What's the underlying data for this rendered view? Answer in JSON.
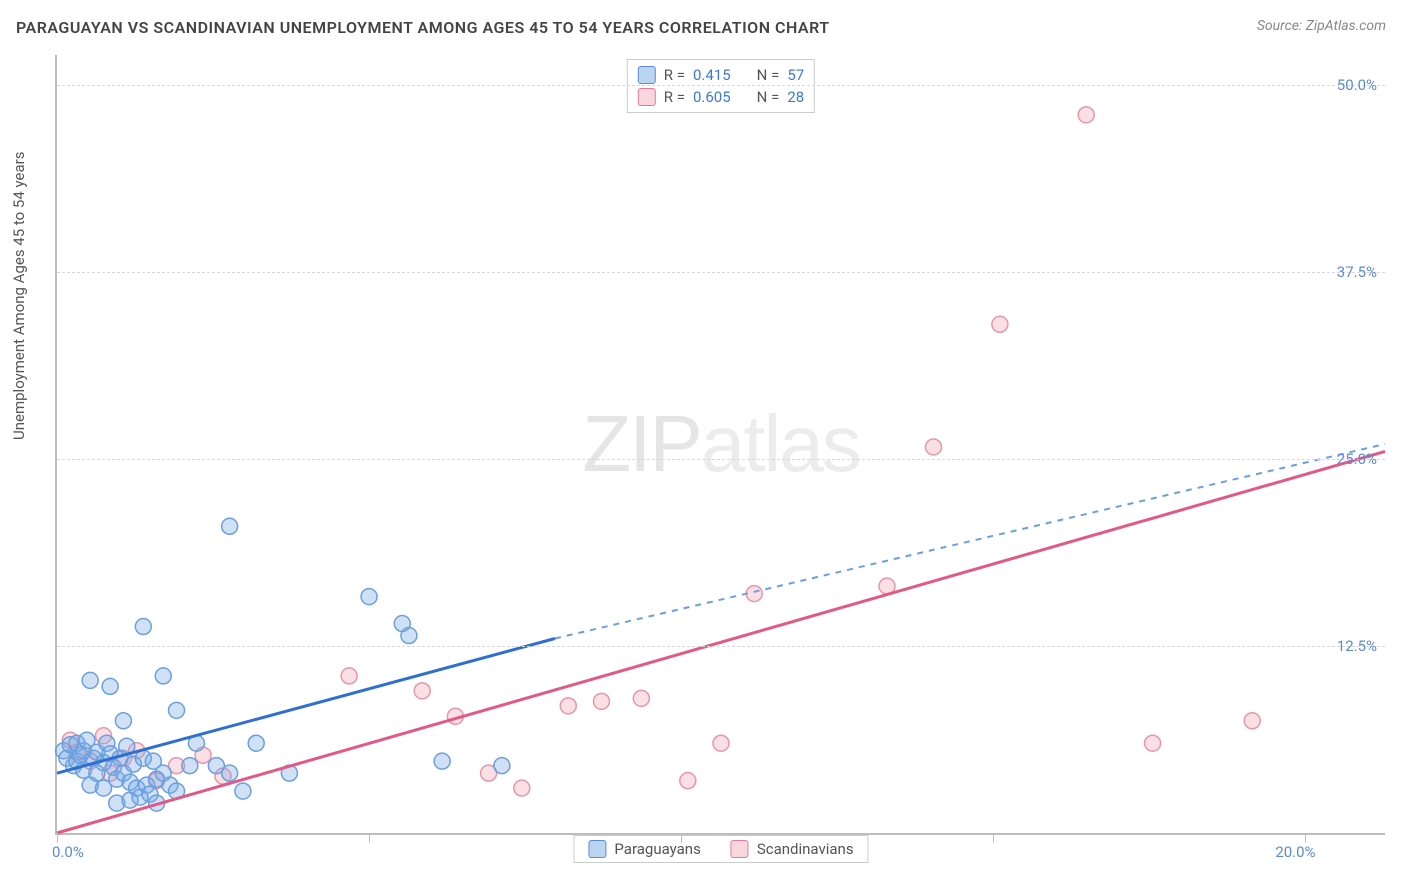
{
  "title": "PARAGUAYAN VS SCANDINAVIAN UNEMPLOYMENT AMONG AGES 45 TO 54 YEARS CORRELATION CHART",
  "source": "Source: ZipAtlas.com",
  "ylabel": "Unemployment Among Ages 45 to 54 years",
  "watermark_bold": "ZIP",
  "watermark_thin": "atlas",
  "chart": {
    "type": "scatter",
    "xlim": [
      0,
      20
    ],
    "ylim": [
      0,
      52
    ],
    "x_tick_positions": [
      0,
      4.7,
      9.4,
      14.1,
      18.8
    ],
    "x_tick_labels": [
      "0.0%",
      "",
      "",
      "",
      "20.0%"
    ],
    "y_tick_positions": [
      12.5,
      25.0,
      37.5,
      50.0
    ],
    "y_tick_labels": [
      "12.5%",
      "25.0%",
      "37.5%",
      "50.0%"
    ],
    "background_color": "#ffffff",
    "grid_color": "#d8d8d8",
    "axis_color": "#bdbdbd",
    "marker_radius": 8,
    "marker_stroke_width": 1.5,
    "line_width": 2
  },
  "series_a": {
    "name": "Paraguayans",
    "color_fill": "rgba(120,170,230,0.35)",
    "color_stroke": "#6aa0e0",
    "line_color": "#2f6fd0",
    "line_dash_color": "#6aa0e0",
    "R": "0.415",
    "N": "57",
    "trend_solid": {
      "x1": 0.0,
      "y1": 4.0,
      "x2": 7.5,
      "y2": 13.0
    },
    "trend_dash": {
      "x1": 7.5,
      "y1": 13.0,
      "x2": 20.0,
      "y2": 26.0
    },
    "points": [
      [
        0.1,
        5.5
      ],
      [
        0.15,
        5.0
      ],
      [
        0.2,
        5.9
      ],
      [
        0.25,
        4.5
      ],
      [
        0.3,
        4.8
      ],
      [
        0.3,
        6.0
      ],
      [
        0.35,
        5.2
      ],
      [
        0.4,
        5.5
      ],
      [
        0.4,
        4.2
      ],
      [
        0.45,
        6.2
      ],
      [
        0.5,
        10.2
      ],
      [
        0.5,
        3.2
      ],
      [
        0.55,
        5.0
      ],
      [
        0.6,
        5.4
      ],
      [
        0.6,
        4.0
      ],
      [
        0.7,
        4.7
      ],
      [
        0.7,
        3.0
      ],
      [
        0.75,
        6.0
      ],
      [
        0.8,
        5.3
      ],
      [
        0.8,
        9.8
      ],
      [
        0.85,
        4.4
      ],
      [
        0.9,
        3.6
      ],
      [
        0.9,
        2.0
      ],
      [
        0.95,
        5.0
      ],
      [
        1.0,
        7.5
      ],
      [
        1.0,
        4.0
      ],
      [
        1.05,
        5.8
      ],
      [
        1.1,
        3.4
      ],
      [
        1.1,
        2.2
      ],
      [
        1.15,
        4.6
      ],
      [
        1.2,
        3.0
      ],
      [
        1.25,
        2.4
      ],
      [
        1.3,
        13.8
      ],
      [
        1.3,
        5.0
      ],
      [
        1.35,
        3.2
      ],
      [
        1.4,
        2.6
      ],
      [
        1.45,
        4.8
      ],
      [
        1.5,
        2.0
      ],
      [
        1.5,
        3.6
      ],
      [
        1.6,
        10.5
      ],
      [
        1.6,
        4.0
      ],
      [
        1.7,
        3.2
      ],
      [
        1.8,
        8.2
      ],
      [
        1.8,
        2.8
      ],
      [
        2.0,
        4.5
      ],
      [
        2.1,
        6.0
      ],
      [
        2.4,
        4.5
      ],
      [
        2.6,
        4.0
      ],
      [
        2.6,
        20.5
      ],
      [
        2.8,
        2.8
      ],
      [
        3.0,
        6.0
      ],
      [
        3.5,
        4.0
      ],
      [
        4.7,
        15.8
      ],
      [
        5.2,
        14.0
      ],
      [
        5.3,
        13.2
      ],
      [
        5.8,
        4.8
      ],
      [
        6.7,
        4.5
      ]
    ]
  },
  "series_b": {
    "name": "Scandinavians",
    "color_fill": "rgba(240,150,170,0.30)",
    "color_stroke": "#e895ac",
    "line_color": "#e05a85",
    "R": "0.605",
    "N": "28",
    "trend_solid": {
      "x1": 0.0,
      "y1": 0.0,
      "x2": 20.0,
      "y2": 25.5
    },
    "points": [
      [
        0.2,
        6.2
      ],
      [
        0.3,
        5.4
      ],
      [
        0.5,
        4.8
      ],
      [
        0.7,
        6.5
      ],
      [
        0.8,
        4.0
      ],
      [
        1.0,
        5.0
      ],
      [
        1.2,
        5.5
      ],
      [
        1.5,
        3.5
      ],
      [
        1.8,
        4.5
      ],
      [
        2.2,
        5.2
      ],
      [
        2.5,
        3.8
      ],
      [
        4.4,
        10.5
      ],
      [
        5.5,
        9.5
      ],
      [
        6.0,
        7.8
      ],
      [
        6.5,
        4.0
      ],
      [
        7.0,
        3.0
      ],
      [
        7.7,
        8.5
      ],
      [
        8.2,
        8.8
      ],
      [
        8.8,
        9.0
      ],
      [
        9.5,
        3.5
      ],
      [
        10.0,
        6.0
      ],
      [
        10.5,
        16.0
      ],
      [
        12.5,
        16.5
      ],
      [
        13.2,
        25.8
      ],
      [
        14.2,
        34.0
      ],
      [
        15.5,
        48.0
      ],
      [
        16.5,
        6.0
      ],
      [
        18.0,
        7.5
      ]
    ]
  },
  "r_legend": {
    "row1": {
      "r_label": "R =",
      "n_label": "N ="
    },
    "row2": {
      "r_label": "R =",
      "n_label": "N ="
    }
  }
}
